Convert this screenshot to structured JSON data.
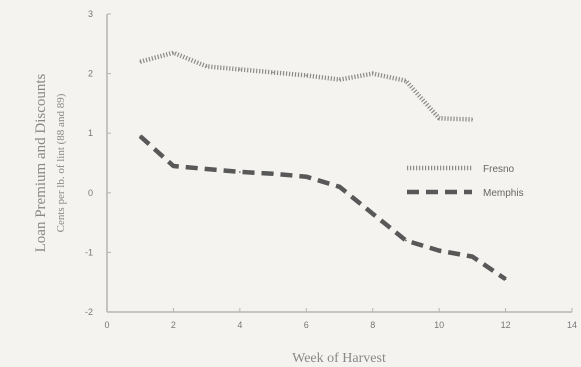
{
  "chart_data": {
    "type": "line",
    "title": "",
    "xlabel": "Week of Harvest",
    "ylabel": "Loan Premium and Discounts",
    "ylabel_sub": "Cents per lb. of lint (88 and 89)",
    "xlim": [
      0,
      14
    ],
    "ylim": [
      -2,
      3
    ],
    "xticks": [
      0,
      2,
      4,
      6,
      8,
      10,
      12,
      14
    ],
    "yticks": [
      -2,
      -1,
      0,
      1,
      2,
      3
    ],
    "grid": false,
    "legend_position": "right",
    "series": [
      {
        "name": "Fresno",
        "style": "dotted",
        "color": "#8a8a8a",
        "x": [
          1,
          2,
          3,
          4,
          5,
          6,
          7,
          8,
          9,
          10,
          11
        ],
        "y": [
          2.2,
          2.35,
          2.12,
          2.07,
          2.02,
          1.97,
          1.9,
          2.0,
          1.88,
          1.25,
          1.23
        ]
      },
      {
        "name": "Memphis",
        "style": "dashed",
        "color": "#585858",
        "x": [
          1,
          2,
          3,
          4,
          5,
          6,
          7,
          8,
          9,
          10,
          11,
          12
        ],
        "y": [
          0.95,
          0.45,
          0.4,
          0.35,
          0.32,
          0.27,
          0.1,
          -0.35,
          -0.8,
          -0.97,
          -1.07,
          -1.45
        ]
      }
    ]
  }
}
